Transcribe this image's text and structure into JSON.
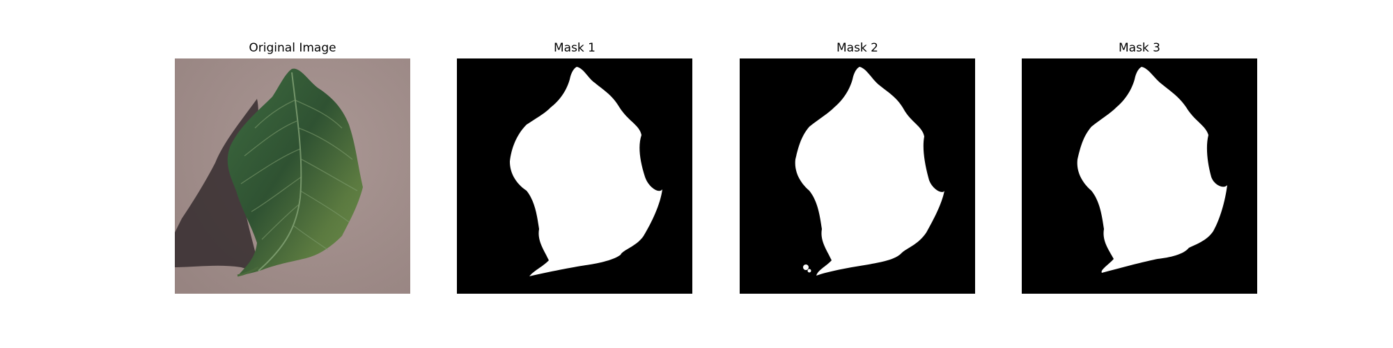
{
  "figure": {
    "panels": [
      {
        "title": "Original Image",
        "kind": "photo"
      },
      {
        "title": "Mask 1",
        "kind": "mask"
      },
      {
        "title": "Mask 2",
        "kind": "mask"
      },
      {
        "title": "Mask 3",
        "kind": "mask"
      }
    ]
  },
  "colors": {
    "background": "#ffffff",
    "mask_background": "#000000",
    "mask_foreground": "#ffffff",
    "paper": "#a28f8c",
    "shadow": "#3c3234",
    "leaf_dark": "#2f5232",
    "leaf_mid": "#4a7448",
    "leaf_light": "#6f8d4c",
    "vein": "#8fae80"
  }
}
